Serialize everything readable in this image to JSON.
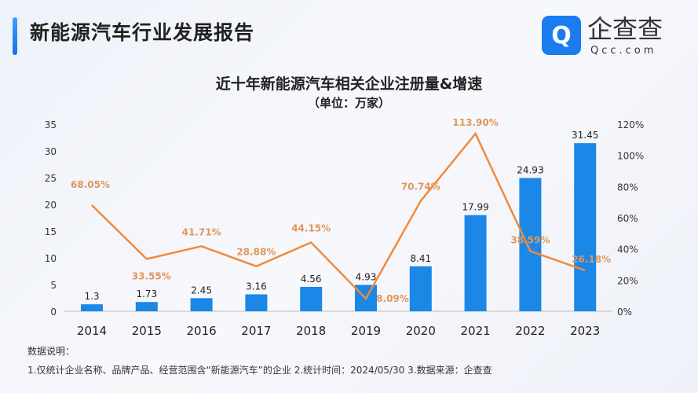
{
  "header": {
    "title": "新能源汽车行业发展报告",
    "logo_text": "企查查",
    "logo_sub": "Qcc.com",
    "logo_glyph": "Q"
  },
  "chart_data": {
    "type": "bar+line",
    "title": "近十年新能源汽车相关企业注册量&增速",
    "subtitle": "（单位：万家）",
    "categories": [
      "2014",
      "2015",
      "2016",
      "2017",
      "2018",
      "2019",
      "2020",
      "2021",
      "2022",
      "2023"
    ],
    "series": [
      {
        "type": "bar",
        "values": [
          1.3,
          1.73,
          2.45,
          3.16,
          4.56,
          4.93,
          8.41,
          17.99,
          24.93,
          31.45
        ],
        "labels": [
          "1.3",
          "1.73",
          "2.45",
          "3.16",
          "4.56",
          "4.93",
          "8.41",
          "17.99",
          "24.93",
          "31.45"
        ],
        "color": "#1b87e6",
        "axis": "left"
      },
      {
        "type": "line",
        "values": [
          68.05,
          33.55,
          41.71,
          28.88,
          44.15,
          8.09,
          70.74,
          113.9,
          38.59,
          26.18
        ],
        "labels": [
          "68.05%",
          "33.55%",
          "41.71%",
          "28.88%",
          "44.15%",
          "8.09%",
          "70.74%",
          "113.90%",
          "38.59%",
          "26.18%"
        ],
        "color": "#f08a3c",
        "axis": "right"
      }
    ],
    "ylim": [
      0,
      35
    ],
    "yticks": [
      "0",
      "5",
      "10",
      "15",
      "20",
      "25",
      "30",
      "35"
    ],
    "y2lim": [
      0,
      120
    ],
    "y2ticks": [
      "0%",
      "20%",
      "40%",
      "60%",
      "80%",
      "100%",
      "120%"
    ],
    "grid": false
  },
  "notes": {
    "heading": "数据说明：",
    "text": "1.仅统计企业名称、品牌产品、经营范围含“新能源汽车”的企业   2.统计时间：2024/05/30    3.数据来源：企查查"
  }
}
